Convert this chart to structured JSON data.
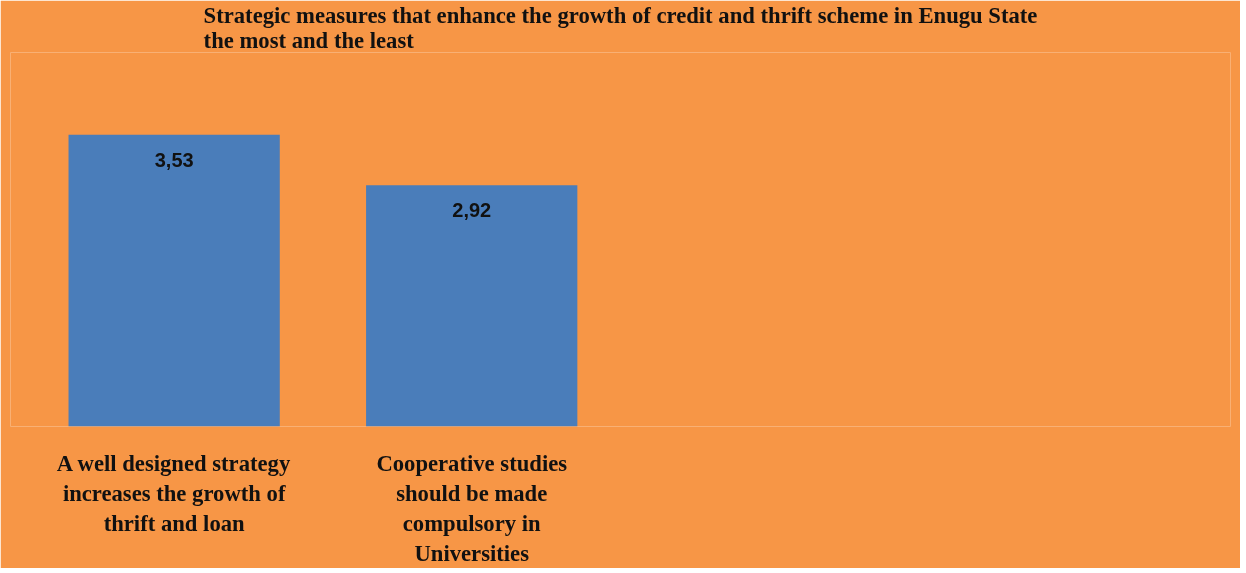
{
  "chart_data": {
    "type": "bar",
    "title": "Strategic measures that enhance the growth of credit and thrift scheme in Enugu State the most and the least",
    "categories": [
      "A well designed strategy increases the growth of thrift and loan",
      "Cooperative studies should be made compulsory in Universities"
    ],
    "values": [
      3.53,
      2.92
    ],
    "value_labels": [
      "3,53",
      "2,92"
    ],
    "color": "#4a7dba"
  }
}
